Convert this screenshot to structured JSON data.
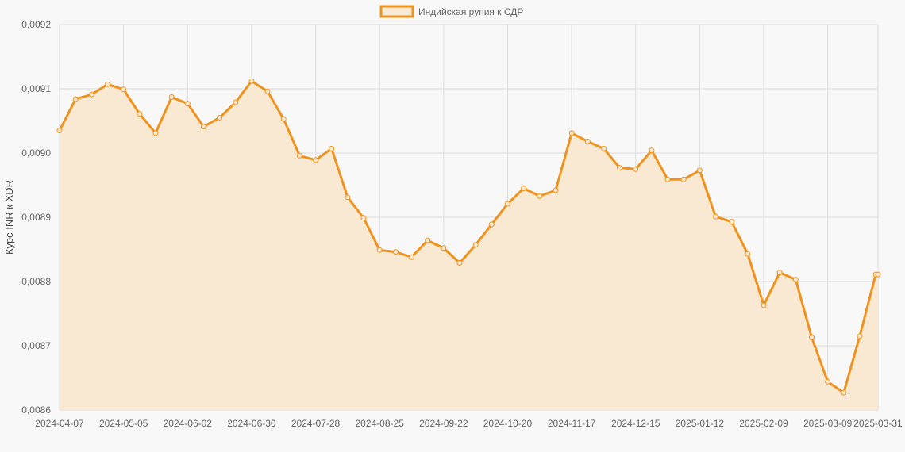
{
  "chart_data": {
    "type": "area",
    "ylabel": "Курс INR к XDR",
    "ylim": [
      0.0086,
      0.0092
    ],
    "y_ticks": [
      "0,0086",
      "0,0087",
      "0,0088",
      "0,0089",
      "0,0090",
      "0,0091",
      "0,0092"
    ],
    "x_ticks": [
      "2024-04-07",
      "2024-05-05",
      "2024-06-02",
      "2024-06-30",
      "2024-07-28",
      "2024-08-25",
      "2024-09-22",
      "2024-10-20",
      "2024-11-17",
      "2024-12-15",
      "2025-01-12",
      "2025-02-09",
      "2025-03-09",
      "2025-03-31"
    ],
    "grid": true,
    "legend_position": "top-center",
    "colors": {
      "line": "#f0921e",
      "fill": "#fae9d2",
      "grid": "#dddddd"
    },
    "series": [
      {
        "name": "Индийская рупия к СДР",
        "x": [
          "2024-04-07",
          "2024-04-14",
          "2024-04-21",
          "2024-04-28",
          "2024-05-05",
          "2024-05-12",
          "2024-05-19",
          "2024-05-26",
          "2024-06-02",
          "2024-06-09",
          "2024-06-16",
          "2024-06-23",
          "2024-06-30",
          "2024-07-07",
          "2024-07-14",
          "2024-07-21",
          "2024-07-28",
          "2024-08-04",
          "2024-08-11",
          "2024-08-18",
          "2024-08-25",
          "2024-09-01",
          "2024-09-08",
          "2024-09-15",
          "2024-09-22",
          "2024-09-29",
          "2024-10-06",
          "2024-10-13",
          "2024-10-20",
          "2024-10-27",
          "2024-11-03",
          "2024-11-10",
          "2024-11-17",
          "2024-11-24",
          "2024-12-01",
          "2024-12-08",
          "2024-12-15",
          "2024-12-22",
          "2024-12-29",
          "2025-01-05",
          "2025-01-12",
          "2025-01-19",
          "2025-01-26",
          "2025-02-02",
          "2025-02-09",
          "2025-02-16",
          "2025-02-23",
          "2025-03-02",
          "2025-03-09",
          "2025-03-16",
          "2025-03-23",
          "2025-03-30",
          "2025-03-31"
        ],
        "values": [
          0.009035,
          0.009084,
          0.009091,
          0.009107,
          0.009099,
          0.009061,
          0.009031,
          0.009087,
          0.009077,
          0.009041,
          0.009055,
          0.009079,
          0.009112,
          0.009096,
          0.009053,
          0.008996,
          0.008989,
          0.009007,
          0.008931,
          0.008899,
          0.008849,
          0.008846,
          0.008838,
          0.008864,
          0.008852,
          0.008829,
          0.008857,
          0.008889,
          0.008921,
          0.008945,
          0.008933,
          0.008942,
          0.009031,
          0.009018,
          0.009007,
          0.008977,
          0.008975,
          0.009004,
          0.008959,
          0.008959,
          0.008973,
          0.008901,
          0.008893,
          0.008843,
          0.008763,
          0.008814,
          0.008803,
          0.008713,
          0.008644,
          0.008627,
          0.008715,
          0.008811,
          0.008811
        ]
      }
    ]
  }
}
